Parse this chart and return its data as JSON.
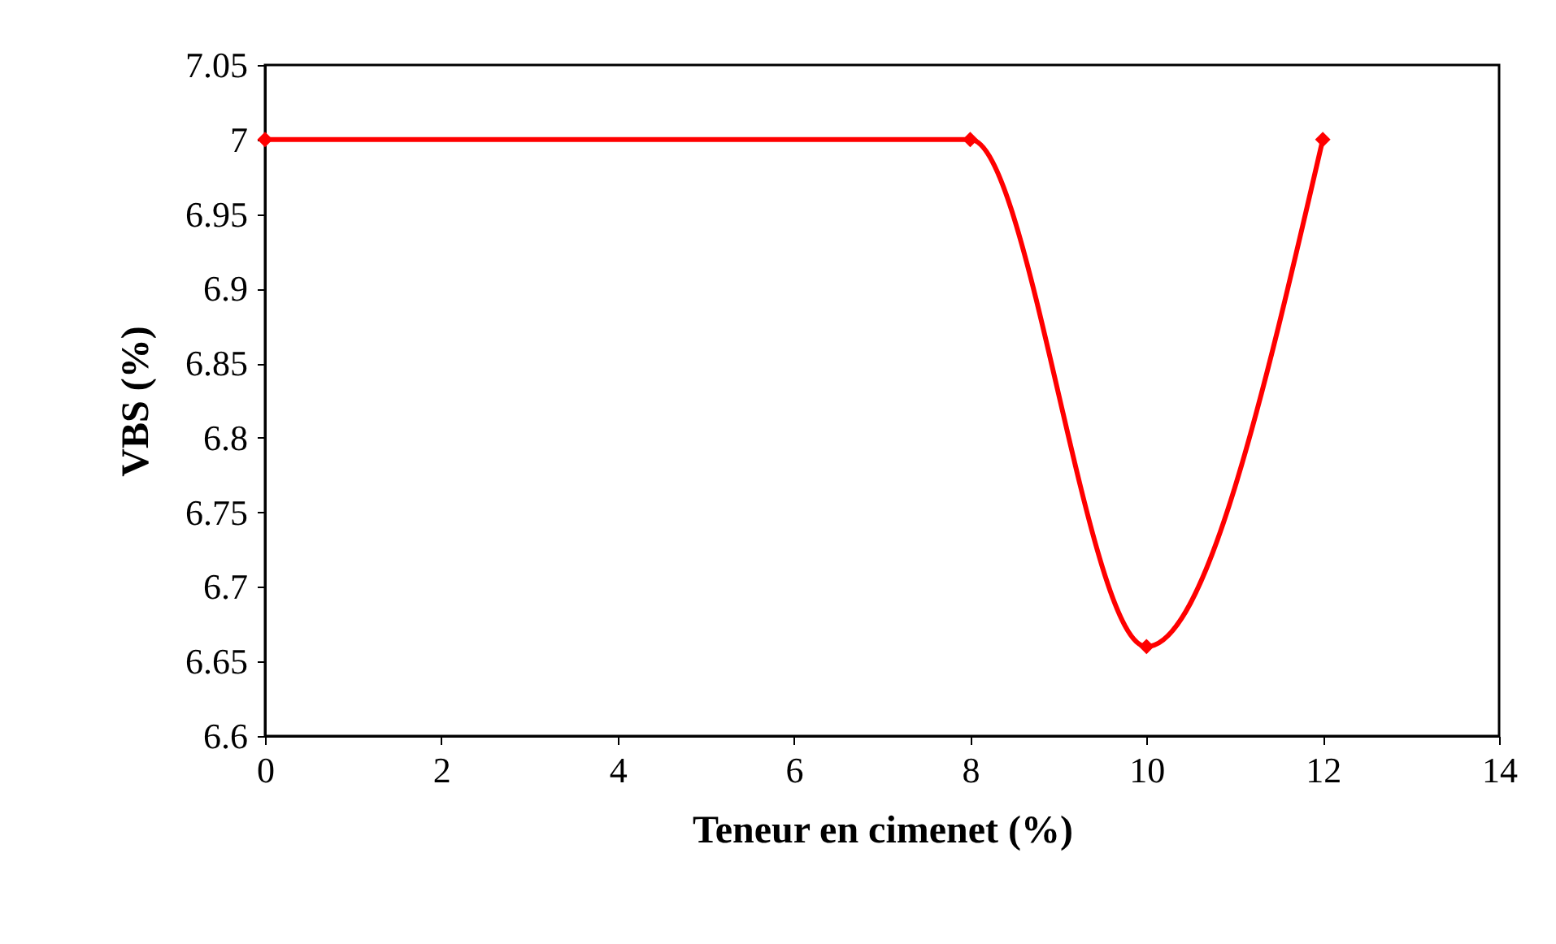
{
  "chart_data": {
    "type": "line",
    "xlabel": "Teneur en cimenet (%)",
    "ylabel": "VBS (%)",
    "x": [
      0,
      8,
      10,
      12
    ],
    "series": [
      {
        "color": "#ff0000",
        "values": [
          7,
          7,
          6.66,
          7
        ]
      }
    ],
    "xlim": [
      0,
      14
    ],
    "xticks": [
      0,
      2,
      4,
      6,
      8,
      10,
      12,
      14
    ],
    "ylim": [
      6.6,
      7.05
    ],
    "yticks": [
      6.6,
      6.65,
      6.7,
      6.75,
      6.8,
      6.85,
      6.9,
      6.95,
      7,
      7.05
    ],
    "grid": false,
    "legend": false,
    "marker": "diamond",
    "line_style": "solid"
  }
}
